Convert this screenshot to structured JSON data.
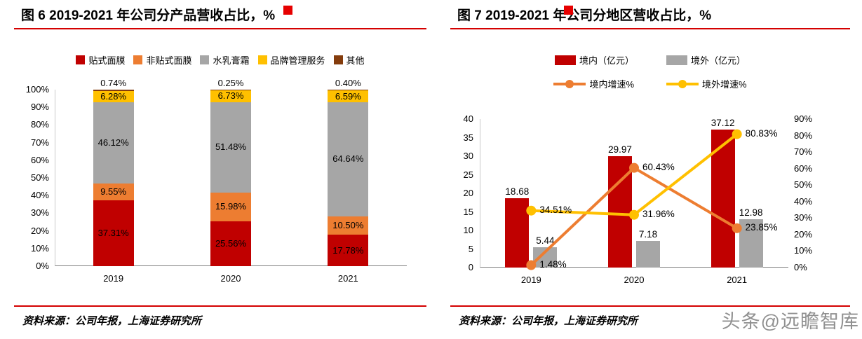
{
  "watermark": "头条@远瞻智库",
  "colors": {
    "accent_red": "#d40000",
    "corner_red": "#e60000",
    "watermark_gray": "#909090"
  },
  "panels": {
    "left": {
      "title": "图 6 2019-2021 年公司分产品营收占比，%",
      "source": "资料来源：公司年报，上海证券研究所"
    },
    "right": {
      "title": "图 7 2019-2021 年公司分地区营收占比，%",
      "source": "资料来源：公司年报，上海证券研究所"
    }
  },
  "chart_data": [
    {
      "type": "bar",
      "stacked": true,
      "title": "图 6 2019-2021 年公司分产品营收占比，%",
      "categories": [
        "2019",
        "2020",
        "2021"
      ],
      "series": [
        {
          "name": "贴式面膜",
          "color": "#c00000",
          "values": [
            37.31,
            25.56,
            17.78
          ]
        },
        {
          "name": "非贴式面膜",
          "color": "#ed7d31",
          "values": [
            9.55,
            15.98,
            10.5
          ]
        },
        {
          "name": "水乳膏霜",
          "color": "#a6a6a6",
          "values": [
            46.12,
            51.48,
            64.64
          ]
        },
        {
          "name": "品牌管理服务",
          "color": "#ffc000",
          "values": [
            6.28,
            6.73,
            6.59
          ]
        },
        {
          "name": "其他",
          "color": "#843c0c",
          "values": [
            0.74,
            0.25,
            0.4
          ]
        }
      ],
      "ylim": [
        0,
        100
      ],
      "ytick_step": 10,
      "ytick_suffix": "%",
      "grid": false,
      "legend_position": "top"
    },
    {
      "type": "bar",
      "subtype": "combo-bar-line",
      "title": "图 7 2019-2021 年公司分地区营收占比，%",
      "categories": [
        "2019",
        "2020",
        "2021"
      ],
      "bar_series": [
        {
          "name": "境内（亿元）",
          "color": "#c00000",
          "values": [
            18.68,
            29.97,
            37.12
          ]
        },
        {
          "name": "境外（亿元）",
          "color": "#a6a6a6",
          "values": [
            5.44,
            7.18,
            12.98
          ]
        }
      ],
      "line_series": [
        {
          "name": "境内增速%",
          "color": "#ed7d31",
          "values": [
            1.48,
            60.43,
            23.85
          ]
        },
        {
          "name": "境外增速%",
          "color": "#ffc000",
          "values": [
            34.51,
            31.96,
            80.83
          ]
        }
      ],
      "left_ylim": [
        0,
        40
      ],
      "left_ytick_step": 5,
      "right_ylim": [
        0,
        90
      ],
      "right_ytick_step": 10,
      "right_ytick_suffix": "%",
      "grid": false,
      "legend_position": "top"
    }
  ]
}
